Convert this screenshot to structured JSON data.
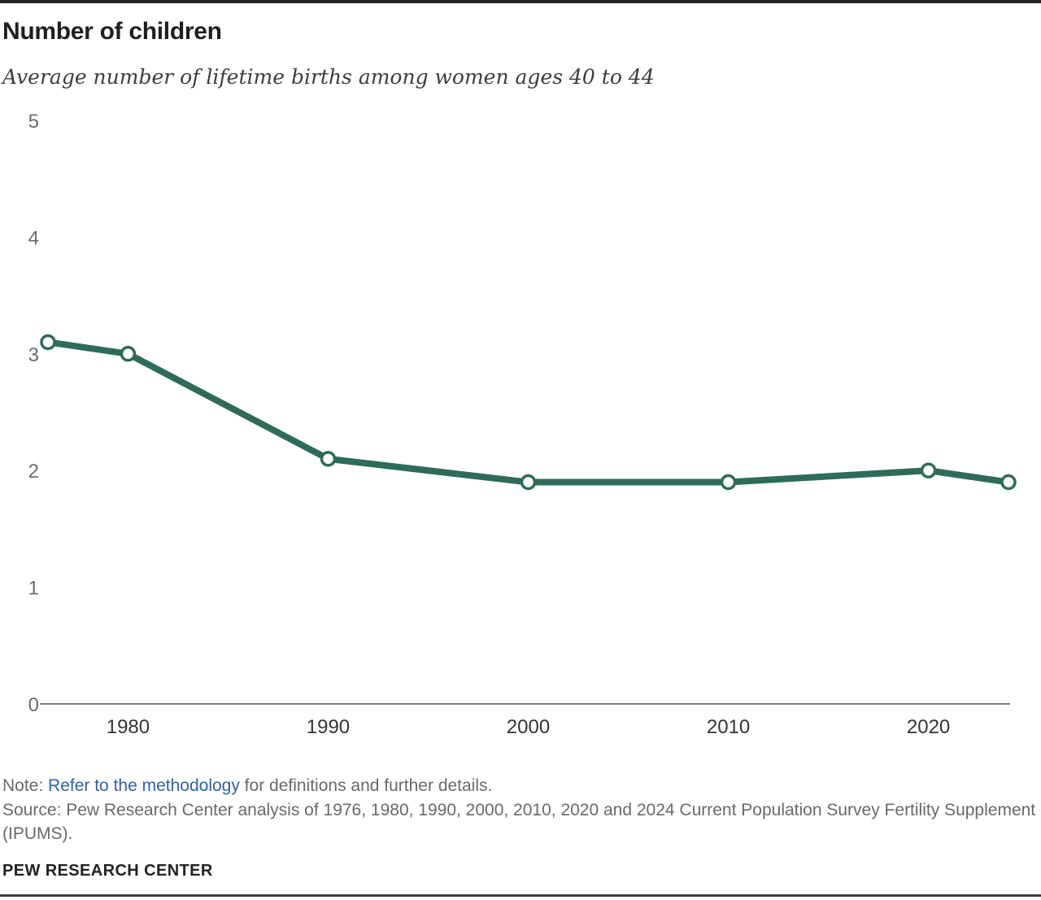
{
  "header": {
    "title": "Number of children",
    "subtitle": "Average number of lifetime births among women ages 40 to 44"
  },
  "chart_data": {
    "type": "line",
    "series_name": "Average number of lifetime births among women ages 40 to 44",
    "x": [
      1976,
      1980,
      1990,
      2000,
      2010,
      2020,
      2024
    ],
    "values": [
      3.1,
      3.0,
      2.1,
      1.9,
      1.9,
      2.0,
      1.9
    ],
    "xticks": [
      1980,
      1990,
      2000,
      2010,
      2020
    ],
    "yticks": [
      0,
      1,
      2,
      3,
      4,
      5
    ],
    "ylim": [
      0,
      5
    ],
    "xlim": [
      1975.6,
      2024
    ],
    "grid": false,
    "legend": "none",
    "line_color": "#2E6B5B",
    "marker": "open-circle-white-fill",
    "axis_color": "#7d7d7d"
  },
  "footnote": {
    "note_prefix": "Note: ",
    "note_link_text": "Refer to the methodology",
    "note_suffix": " for definitions and further details.",
    "source_text": "Source: Pew Research Center analysis of 1976, 1980, 1990, 2000, 2010, 2020 and 2024 Current Population Survey Fertility Supplement (IPUMS).",
    "link_color": "#2F62A6"
  },
  "footer": {
    "wordmark": "PEW RESEARCH CENTER"
  }
}
